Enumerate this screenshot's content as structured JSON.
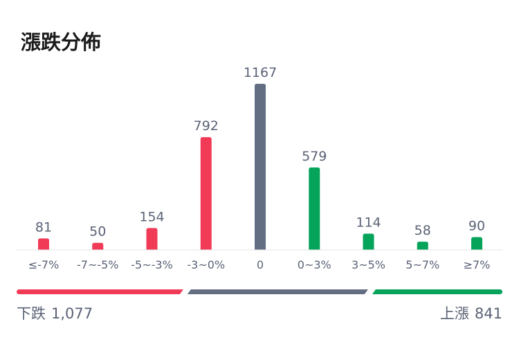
{
  "title": "漲跌分佈",
  "colors": {
    "down": "#f03a56",
    "flat": "#646e82",
    "up": "#06a35a",
    "text": "#5a6275",
    "axis": "#e6e6e6"
  },
  "chart_data": {
    "type": "bar",
    "categories": [
      "≤-7%",
      "-7~-5%",
      "-5~-3%",
      "-3~0%",
      "0",
      "0~3%",
      "3~5%",
      "5~7%",
      "≥7%"
    ],
    "values": [
      81,
      50,
      154,
      792,
      1167,
      579,
      114,
      58,
      90
    ],
    "groups": [
      "down",
      "down",
      "down",
      "down",
      "flat",
      "up",
      "up",
      "up",
      "up"
    ],
    "data_labels": [
      "81",
      "50",
      "154",
      "792",
      "1167",
      "579",
      "114",
      "58",
      "90"
    ],
    "title": "漲跌分佈",
    "grid": false
  },
  "summary": {
    "down_label": "下跌",
    "down_count": "1,077",
    "up_label": "上漲",
    "up_count": "841",
    "flat_count": 1167
  }
}
